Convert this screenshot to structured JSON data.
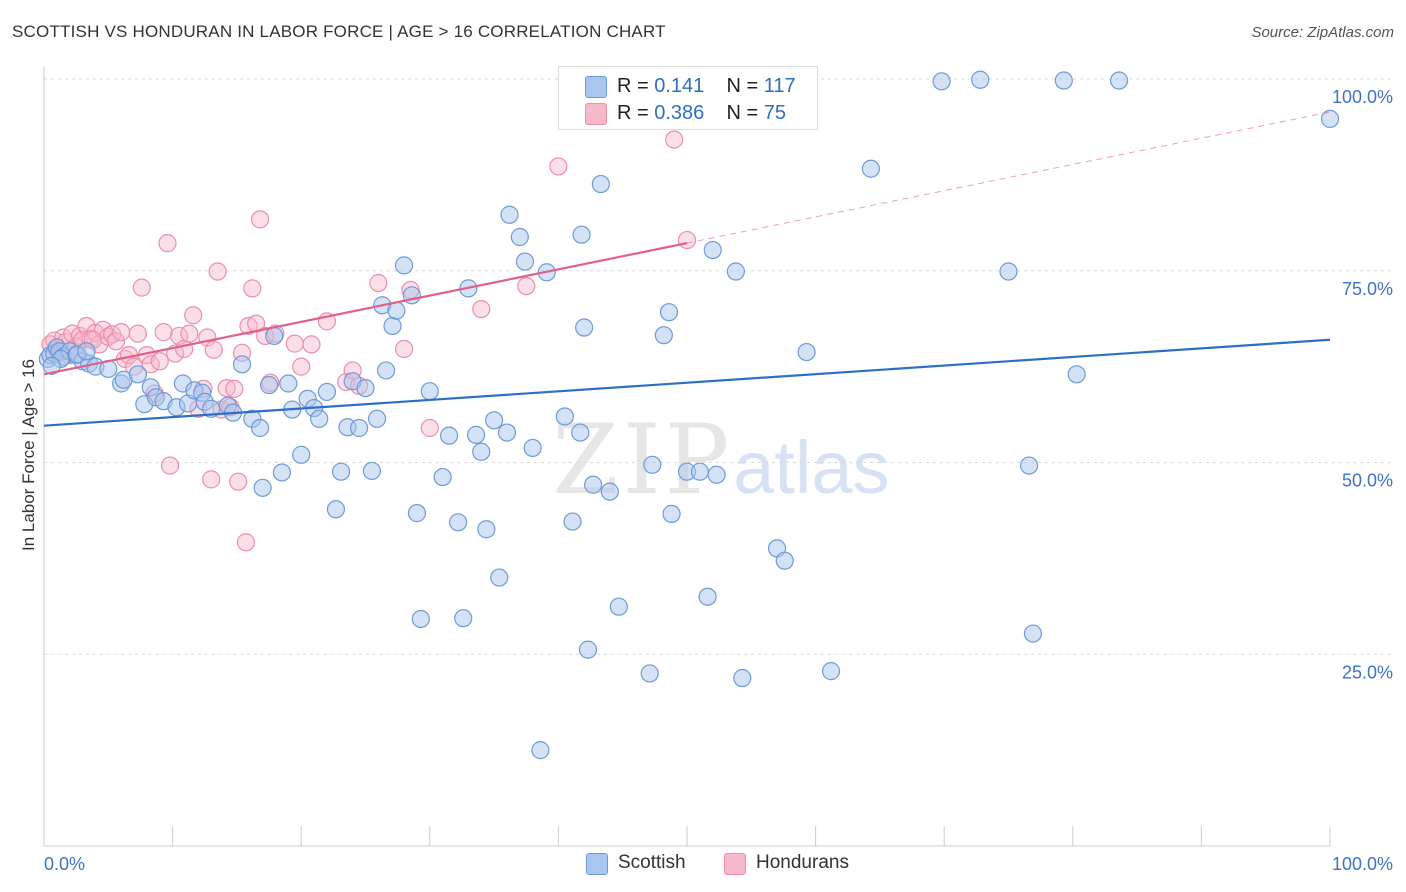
{
  "title": "SCOTTISH VS HONDURAN IN LABOR FORCE | AGE > 16 CORRELATION CHART",
  "source": "Source: ZipAtlas.com",
  "legend": {
    "rows": [
      {
        "r_label": "R =",
        "r_value": "0.141",
        "n_label": "N =",
        "n_value": "117"
      },
      {
        "r_label": "R =",
        "r_value": "0.386",
        "n_label": "N =",
        "n_value": "75"
      }
    ]
  },
  "bottom_legend": [
    "Scottish",
    "Hondurans"
  ],
  "colors": {
    "scottish_fill": "#a9c6ee",
    "scottish_stroke": "#6f9ad8",
    "scottish_line": "#2d6fc4",
    "hondurans_fill": "#f6b9cb",
    "hondurans_stroke": "#ec8fab",
    "hondurans_line": "#e0608a",
    "tick_label": "#3d73c5",
    "grid": "#d9d9d9"
  },
  "watermark": {
    "part1": "ZIP",
    "part2": "atlas"
  },
  "chart_data": {
    "type": "scatter",
    "xlabel": "",
    "ylabel": "In Labor Force | Age > 16",
    "x_tick_labels": [
      "0.0%",
      "100.0%"
    ],
    "y_tick_labels": [
      "25.0%",
      "50.0%",
      "75.0%",
      "100.0%"
    ],
    "y_ticks": [
      25,
      50,
      75,
      100
    ],
    "xlim": [
      0,
      100
    ],
    "ylim": [
      0,
      100
    ],
    "grid": true,
    "legend_position": "top-center",
    "series": [
      {
        "name": "Scottish",
        "R": 0.141,
        "N": 117,
        "trend": {
          "x": [
            0,
            100
          ],
          "y": [
            54.8,
            66.0
          ]
        },
        "points": [
          [
            0.3,
            63.5
          ],
          [
            0.5,
            64.0
          ],
          [
            0.8,
            64.2
          ],
          [
            1.0,
            65.0
          ],
          [
            1.2,
            64.5
          ],
          [
            1.5,
            63.8
          ],
          [
            2.0,
            64.5
          ],
          [
            2.5,
            64.0
          ],
          [
            3.0,
            63.2
          ],
          [
            3.5,
            62.9
          ],
          [
            4.0,
            62.5
          ],
          [
            5.0,
            62.2
          ],
          [
            6.0,
            60.3
          ],
          [
            6.2,
            60.8
          ],
          [
            7.3,
            61.5
          ],
          [
            7.8,
            57.6
          ],
          [
            8.3,
            59.8
          ],
          [
            8.7,
            58.5
          ],
          [
            9.3,
            58.0
          ],
          [
            10.3,
            57.2
          ],
          [
            10.8,
            60.3
          ],
          [
            11.2,
            57.7
          ],
          [
            11.7,
            59.4
          ],
          [
            12.3,
            59.1
          ],
          [
            12.5,
            57.9
          ],
          [
            13.0,
            57.0
          ],
          [
            14.3,
            57.4
          ],
          [
            14.7,
            56.5
          ],
          [
            15.4,
            62.8
          ],
          [
            16.2,
            55.7
          ],
          [
            16.8,
            54.5
          ],
          [
            17.0,
            46.7
          ],
          [
            17.5,
            60.1
          ],
          [
            17.9,
            66.5
          ],
          [
            18.5,
            48.7
          ],
          [
            19.0,
            60.3
          ],
          [
            19.3,
            56.9
          ],
          [
            20.0,
            51.0
          ],
          [
            20.5,
            58.3
          ],
          [
            21.0,
            57.1
          ],
          [
            21.4,
            55.7
          ],
          [
            22.0,
            59.2
          ],
          [
            22.7,
            43.9
          ],
          [
            23.1,
            48.8
          ],
          [
            23.6,
            54.6
          ],
          [
            24.0,
            60.6
          ],
          [
            24.5,
            54.5
          ],
          [
            25.0,
            59.7
          ],
          [
            25.5,
            48.9
          ],
          [
            25.9,
            55.7
          ],
          [
            26.3,
            70.5
          ],
          [
            26.6,
            62.0
          ],
          [
            27.1,
            67.8
          ],
          [
            27.4,
            69.8
          ],
          [
            28.0,
            75.7
          ],
          [
            28.6,
            71.8
          ],
          [
            29.0,
            43.4
          ],
          [
            29.3,
            29.6
          ],
          [
            30.0,
            59.3
          ],
          [
            31.0,
            48.1
          ],
          [
            31.5,
            53.5
          ],
          [
            32.2,
            42.2
          ],
          [
            32.6,
            29.7
          ],
          [
            33.0,
            72.7
          ],
          [
            33.6,
            53.6
          ],
          [
            34.0,
            51.4
          ],
          [
            34.4,
            41.3
          ],
          [
            35.0,
            55.5
          ],
          [
            35.4,
            35.0
          ],
          [
            36.0,
            53.9
          ],
          [
            36.2,
            82.3
          ],
          [
            37.0,
            79.4
          ],
          [
            37.4,
            76.2
          ],
          [
            38.0,
            51.9
          ],
          [
            38.6,
            12.5
          ],
          [
            39.1,
            74.8
          ],
          [
            40.5,
            56.0
          ],
          [
            41.1,
            42.3
          ],
          [
            41.7,
            53.9
          ],
          [
            41.8,
            79.7
          ],
          [
            42.0,
            67.6
          ],
          [
            42.3,
            25.6
          ],
          [
            42.7,
            47.1
          ],
          [
            43.3,
            86.3
          ],
          [
            44.0,
            46.2
          ],
          [
            44.7,
            31.2
          ],
          [
            45.0,
            100.0
          ],
          [
            47.1,
            22.5
          ],
          [
            47.3,
            49.7
          ],
          [
            48.2,
            66.6
          ],
          [
            48.6,
            69.6
          ],
          [
            48.8,
            43.3
          ],
          [
            50.0,
            48.8
          ],
          [
            51.0,
            48.8
          ],
          [
            51.6,
            32.5
          ],
          [
            52.0,
            77.7
          ],
          [
            52.3,
            48.4
          ],
          [
            53.8,
            74.9
          ],
          [
            54.3,
            21.9
          ],
          [
            57.0,
            38.8
          ],
          [
            57.6,
            37.2
          ],
          [
            59.3,
            64.4
          ],
          [
            61.2,
            22.8
          ],
          [
            64.3,
            88.3
          ],
          [
            69.8,
            99.7
          ],
          [
            72.8,
            99.9
          ],
          [
            75.0,
            74.9
          ],
          [
            76.6,
            49.6
          ],
          [
            76.9,
            27.7
          ],
          [
            80.3,
            61.5
          ],
          [
            79.3,
            99.8
          ],
          [
            83.6,
            99.8
          ],
          [
            100.0,
            94.8
          ],
          [
            2.6,
            64.1
          ],
          [
            3.3,
            64.5
          ],
          [
            1.3,
            63.5
          ],
          [
            0.6,
            62.6
          ]
        ]
      },
      {
        "name": "Hondurans",
        "R": 0.386,
        "N": 75,
        "trend": {
          "x": [
            0,
            50
          ],
          "y": [
            61.5,
            78.6
          ]
        },
        "trend_extension": {
          "x": [
            50,
            100
          ],
          "y": [
            78.6,
            95.7
          ]
        },
        "points": [
          [
            0.5,
            65.4
          ],
          [
            0.8,
            65.9
          ],
          [
            1.0,
            64.7
          ],
          [
            1.2,
            64.3
          ],
          [
            1.5,
            66.3
          ],
          [
            1.7,
            65.7
          ],
          [
            2.0,
            64.0
          ],
          [
            2.2,
            66.8
          ],
          [
            2.5,
            65.1
          ],
          [
            2.8,
            66.5
          ],
          [
            3.0,
            66.0
          ],
          [
            3.3,
            67.8
          ],
          [
            3.6,
            66.1
          ],
          [
            4.0,
            66.9
          ],
          [
            4.3,
            65.4
          ],
          [
            4.6,
            67.3
          ],
          [
            5.0,
            66.4
          ],
          [
            5.3,
            66.7
          ],
          [
            5.6,
            65.8
          ],
          [
            6.0,
            67.0
          ],
          [
            6.3,
            63.5
          ],
          [
            6.6,
            64.0
          ],
          [
            7.0,
            62.5
          ],
          [
            7.3,
            66.8
          ],
          [
            7.6,
            72.8
          ],
          [
            8.0,
            64.0
          ],
          [
            8.3,
            62.8
          ],
          [
            8.6,
            59.0
          ],
          [
            9.0,
            63.2
          ],
          [
            9.3,
            67.0
          ],
          [
            9.6,
            78.6
          ],
          [
            9.8,
            49.6
          ],
          [
            10.2,
            64.2
          ],
          [
            10.5,
            66.5
          ],
          [
            10.9,
            64.8
          ],
          [
            11.3,
            66.8
          ],
          [
            11.6,
            69.2
          ],
          [
            12.0,
            57.0
          ],
          [
            12.4,
            59.6
          ],
          [
            12.7,
            66.3
          ],
          [
            13.0,
            47.8
          ],
          [
            13.2,
            64.7
          ],
          [
            13.5,
            74.9
          ],
          [
            13.8,
            56.9
          ],
          [
            14.2,
            59.7
          ],
          [
            14.5,
            57.2
          ],
          [
            14.8,
            59.6
          ],
          [
            15.1,
            47.5
          ],
          [
            15.4,
            64.3
          ],
          [
            15.7,
            39.6
          ],
          [
            15.9,
            67.8
          ],
          [
            16.2,
            72.7
          ],
          [
            16.5,
            68.1
          ],
          [
            16.8,
            81.7
          ],
          [
            17.2,
            66.5
          ],
          [
            17.6,
            60.4
          ],
          [
            18.0,
            66.8
          ],
          [
            19.5,
            65.5
          ],
          [
            20.0,
            62.5
          ],
          [
            20.8,
            65.4
          ],
          [
            22.0,
            68.4
          ],
          [
            23.5,
            60.5
          ],
          [
            24.0,
            62.0
          ],
          [
            24.5,
            60.0
          ],
          [
            26.0,
            73.4
          ],
          [
            28.0,
            64.8
          ],
          [
            28.5,
            72.5
          ],
          [
            30.0,
            54.5
          ],
          [
            34.0,
            70.0
          ],
          [
            37.5,
            73.0
          ],
          [
            40.0,
            88.6
          ],
          [
            41.0,
            99.9
          ],
          [
            49.0,
            92.1
          ],
          [
            50.0,
            79.0
          ],
          [
            3.8,
            66.0
          ]
        ]
      }
    ]
  }
}
